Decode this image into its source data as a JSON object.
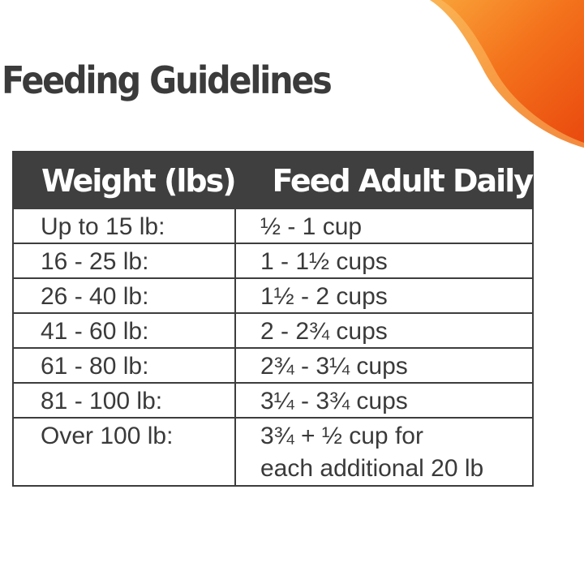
{
  "page": {
    "title": "Feeding Guidelines"
  },
  "colors": {
    "accent_orange": "#f25a14",
    "accent_light": "#f9a43a",
    "header_bg": "#3f3f3f",
    "text": "#3a3a3a"
  },
  "table": {
    "headers": {
      "weight": "Weight (lbs)",
      "feed": "Feed Adult Daily"
    },
    "rows": [
      {
        "weight": "Up to 15 lb:",
        "feed": "½ - 1 cup"
      },
      {
        "weight": "16 - 25 lb:",
        "feed": "1 - 1½ cups"
      },
      {
        "weight": "26 - 40 lb:",
        "feed": "1½ - 2 cups"
      },
      {
        "weight": "41 - 60 lb:",
        "feed": "2 - 2¾ cups"
      },
      {
        "weight": "61 - 80 lb:",
        "feed": "2¾ - 3¼ cups"
      },
      {
        "weight": "81 - 100 lb:",
        "feed": "3¼ - 3¾ cups"
      },
      {
        "weight": "Over 100 lb:",
        "feed": "3¾ + ½ cup for",
        "feed_line2": "each additional 20 lb"
      }
    ]
  }
}
